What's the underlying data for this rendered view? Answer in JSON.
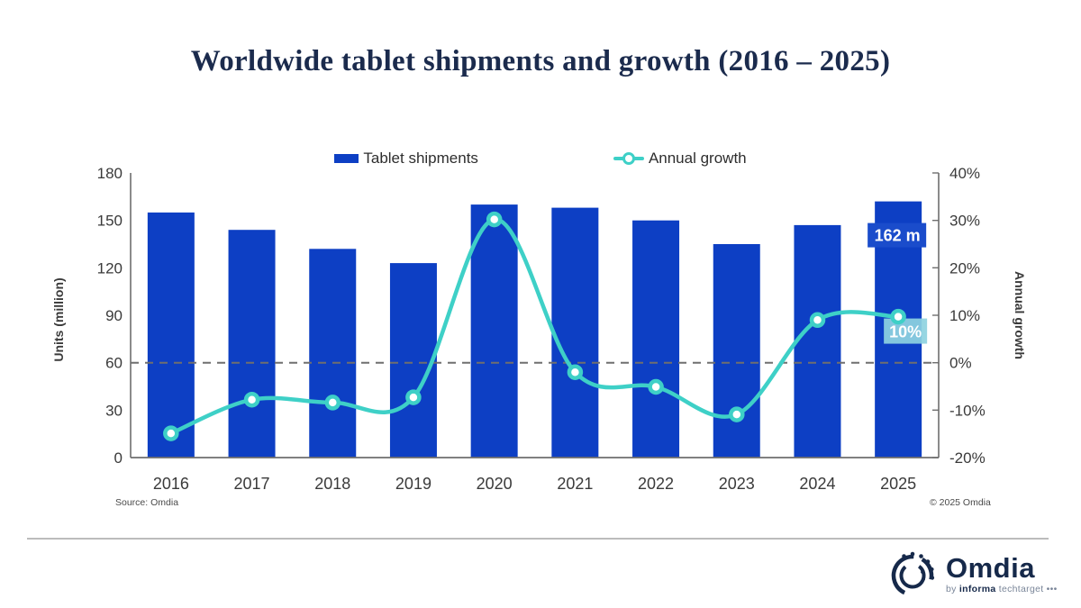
{
  "title": "Worldwide tablet shipments and growth (2016 – 2025)",
  "legend": {
    "shipments_label": "Tablet shipments",
    "growth_label": "Annual growth"
  },
  "chart_data": {
    "type": "bar+line combo",
    "categories": [
      "2016",
      "2017",
      "2018",
      "2019",
      "2020",
      "2021",
      "2022",
      "2023",
      "2024",
      "2025"
    ],
    "series": [
      {
        "name": "Tablet shipments",
        "type": "bar",
        "axis": "left",
        "values": [
          155,
          144,
          132,
          123,
          160,
          158,
          150,
          135,
          147,
          162
        ]
      },
      {
        "name": "Annual growth",
        "type": "line",
        "axis": "right",
        "values": [
          -14.9,
          -7.8,
          -8.4,
          -7.3,
          30.2,
          -2,
          -5.1,
          -10.9,
          9,
          9.7
        ]
      }
    ],
    "left_axis": {
      "label": "Units (million)",
      "range": [
        0,
        180
      ],
      "ticks": [
        0,
        30,
        60,
        90,
        120,
        150,
        180
      ]
    },
    "right_axis": {
      "label": "Annual growth",
      "range": [
        -20,
        40
      ],
      "ticks": [
        "-20%",
        "-10%",
        "0%",
        "10%",
        "20%",
        "30%",
        "40%"
      ]
    },
    "zero_line_dashed": true,
    "grid": "off",
    "legend_position": "top-center",
    "annotations": [
      {
        "type": "bar-label",
        "index": 9,
        "text": "162 m"
      },
      {
        "type": "point-label",
        "index": 9,
        "text": "10%"
      }
    ]
  },
  "footer": {
    "source": "Source: Omdia",
    "copyright": "© 2025 Omdia"
  },
  "branding": {
    "name": "Omdia",
    "by": "by",
    "informa": "informa",
    "techtarget": "techtarget",
    "dots": "•••",
    "icon": "omdia-rings-icon"
  },
  "colors": {
    "bar": "#0d3fc4",
    "line": "#3ed0c7",
    "marker_fill": "#ffffff",
    "title": "#1b2b4d",
    "axis_text": "#3a3a3a",
    "axis_line": "#6e6e6e",
    "zero_dash": "#6f6f6f",
    "annotation_bar_bg": "#1a4ccb",
    "annotation_point_bg": "#8ed2e0",
    "annotation_text": "#ffffff",
    "divider": "#bcbcbc",
    "logo_navy": "#16294a",
    "footer_text": "#4a4a4a"
  }
}
